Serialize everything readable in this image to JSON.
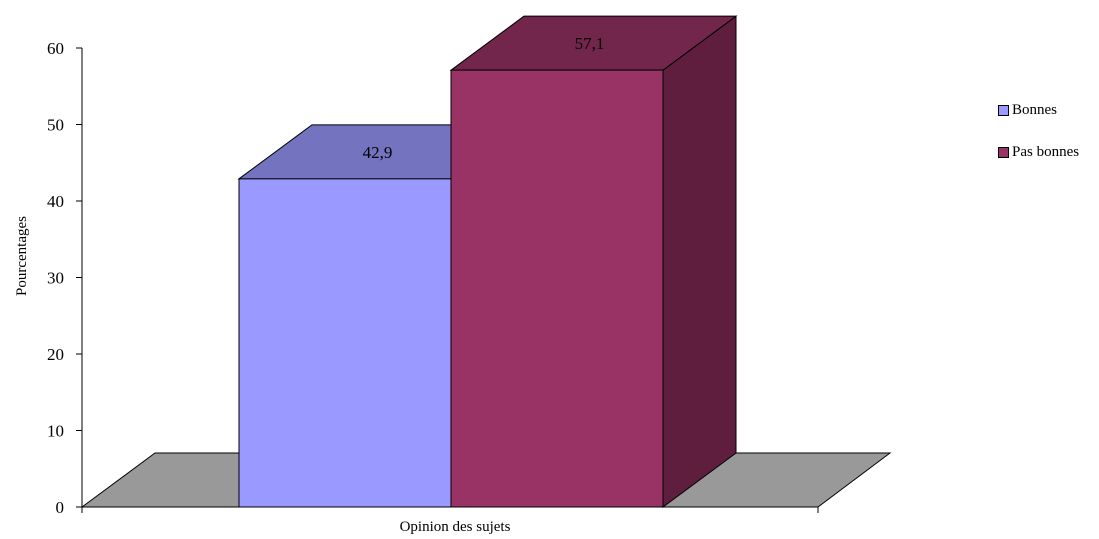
{
  "chart_data": {
    "type": "bar",
    "title": "",
    "xlabel": "Opinion des sujets",
    "ylabel": "Pourcentages",
    "ylim": [
      0,
      60
    ],
    "yticks": [
      "0",
      "10",
      "20",
      "30",
      "40",
      "50",
      "60"
    ],
    "categories": [
      "Opinion des sujets"
    ],
    "series": [
      {
        "name": "Bonnes",
        "values": [
          42.9
        ],
        "label": "42,9",
        "color": "#9999ff",
        "top_color": "#7373c0"
      },
      {
        "name": "Pas bonnes",
        "values": [
          57.1
        ],
        "label": "57,1",
        "color": "#993366",
        "top_color": "#73264c",
        "side_color": "#5f1e3e"
      }
    ],
    "legend_position": "right",
    "grid": false,
    "three_d": true
  }
}
